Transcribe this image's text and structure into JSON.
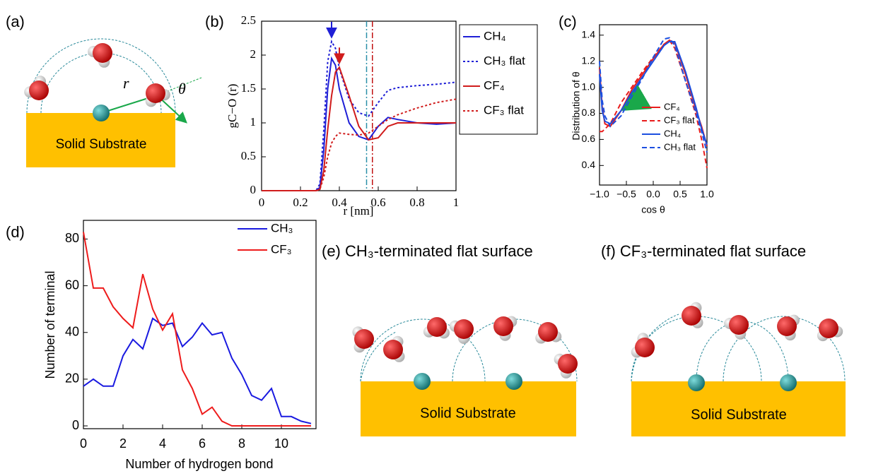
{
  "panels": {
    "a": {
      "label": "(a)",
      "substrate": "Solid Substrate",
      "r": "r",
      "theta": "θ"
    },
    "e": {
      "title": "(e) CH₃-terminated flat surface",
      "substrate": "Solid Substrate"
    },
    "f": {
      "title": "(f) CF₃-terminated flat surface",
      "substrate": "Solid Substrate"
    }
  },
  "chart_data": [
    {
      "type": "line",
      "panel": "(b)",
      "xlabel": "r [nm]",
      "ylabel": "gC−O (r)",
      "x": [
        0,
        0.28,
        0.3,
        0.32,
        0.34,
        0.36,
        0.38,
        0.4,
        0.45,
        0.5,
        0.55,
        0.6,
        0.65,
        0.7,
        0.8,
        0.9,
        1
      ],
      "xlim": [
        0,
        1
      ],
      "xticks": [
        0,
        0.2,
        0.4,
        0.6,
        0.8,
        1
      ],
      "ylim": [
        0,
        2.5
      ],
      "yticks": [
        0,
        0.5,
        1,
        1.5,
        2,
        2.5
      ],
      "series": [
        {
          "name": "CH₄",
          "color": "#1f1fd6",
          "style": "solid",
          "values": [
            0,
            0,
            0.05,
            0.6,
            1.5,
            1.95,
            1.85,
            1.5,
            1.0,
            0.8,
            0.75,
            0.95,
            1.08,
            1.05,
            1.0,
            0.98,
            1.0
          ]
        },
        {
          "name": "CH₃ flat",
          "color": "#1f1fd6",
          "style": "dotted",
          "values": [
            0,
            0,
            0.1,
            0.9,
            1.9,
            2.2,
            2.1,
            1.8,
            1.35,
            1.15,
            1.1,
            1.3,
            1.48,
            1.52,
            1.55,
            1.57,
            1.6
          ]
        },
        {
          "name": "CF₄",
          "color": "#d01c1c",
          "style": "solid",
          "values": [
            0,
            0,
            0.02,
            0.3,
            0.9,
            1.4,
            1.75,
            1.82,
            1.4,
            0.95,
            0.75,
            0.78,
            0.95,
            1.0,
            1.0,
            1.0,
            1.0
          ]
        },
        {
          "name": "CF₃ flat",
          "color": "#d01c1c",
          "style": "dotted",
          "values": [
            0,
            0,
            0.02,
            0.2,
            0.5,
            0.7,
            0.8,
            0.85,
            0.83,
            0.82,
            0.85,
            0.95,
            1.05,
            1.12,
            1.22,
            1.3,
            1.35
          ]
        }
      ],
      "vlines": [
        {
          "value": 0.54,
          "color": "#2a8fa8"
        },
        {
          "value": 0.57,
          "color": "#c01010"
        }
      ]
    },
    {
      "type": "line",
      "panel": "(c)",
      "xlabel": "cos θ",
      "ylabel": "Distribution of θ",
      "x": [
        -1,
        -0.95,
        -0.9,
        -0.8,
        -0.6,
        -0.4,
        -0.2,
        0,
        0.2,
        0.3,
        0.4,
        0.6,
        0.8,
        0.9,
        1
      ],
      "xlim": [
        -1,
        1
      ],
      "xticks": [
        {
          "value": -1,
          "label": "−1.0"
        },
        {
          "value": -0.5,
          "label": "−0.5"
        },
        {
          "value": 0,
          "label": "0.0"
        },
        0.5,
        {
          "value": 1,
          "label": "1.0"
        }
      ],
      "ylim": [
        0.25,
        1.48
      ],
      "yticks": [
        0.4,
        0.6,
        0.8,
        {
          "value": 1,
          "label": "1.0"
        },
        1.2,
        1.4
      ],
      "series": [
        {
          "name": "CF₄",
          "color": "#e81c1c",
          "style": "solid",
          "values": [
            1.15,
            0.85,
            0.72,
            0.7,
            0.82,
            0.98,
            1.1,
            1.22,
            1.33,
            1.36,
            1.34,
            1.1,
            0.82,
            0.7,
            0.55
          ]
        },
        {
          "name": "CF₃ flat",
          "color": "#e81c1c",
          "style": "dashed",
          "values": [
            0.66,
            0.66,
            0.68,
            0.72,
            0.88,
            1.0,
            1.12,
            1.23,
            1.33,
            1.36,
            1.3,
            1.05,
            0.78,
            0.6,
            0.38
          ]
        },
        {
          "name": "CH₄",
          "color": "#1c4fe0",
          "style": "solid",
          "values": [
            1.1,
            0.82,
            0.74,
            0.72,
            0.82,
            0.96,
            1.08,
            1.2,
            1.32,
            1.35,
            1.35,
            1.12,
            0.84,
            0.68,
            0.56
          ]
        },
        {
          "name": "CH₃ flat",
          "color": "#1c4fe0",
          "style": "dashed",
          "values": [
            1.2,
            0.9,
            0.78,
            0.7,
            0.78,
            0.93,
            1.07,
            1.23,
            1.37,
            1.38,
            1.32,
            1.05,
            0.8,
            0.66,
            0.5
          ]
        }
      ]
    },
    {
      "type": "line",
      "panel": "(d)",
      "xlabel": "Number of hydrogen bond",
      "ylabel": "Number of terminal",
      "x": [
        0,
        0.5,
        1,
        1.5,
        2,
        2.5,
        3,
        3.5,
        4,
        4.5,
        5,
        5.5,
        6,
        6.5,
        7,
        7.5,
        8,
        8.5,
        9,
        9.5,
        10,
        10.5,
        11,
        11.5
      ],
      "xlim": [
        0,
        11.75
      ],
      "xticks": [
        0,
        2,
        4,
        6,
        8,
        10
      ],
      "ylim": [
        -1.2,
        88
      ],
      "yticks": [
        0,
        20,
        40,
        60,
        80
      ],
      "series": [
        {
          "name": "CH₃",
          "color": "#1a1ae0",
          "style": "solid",
          "values": [
            17,
            20,
            17,
            17,
            30,
            37,
            33,
            46,
            43,
            44,
            34,
            38,
            44,
            39,
            40,
            29,
            22,
            13,
            11,
            16,
            4,
            4,
            2,
            1
          ]
        },
        {
          "name": "CF₃",
          "color": "#ee1c1c",
          "style": "solid",
          "values": [
            83,
            59,
            59,
            51,
            46,
            42,
            65,
            50,
            41,
            48,
            24,
            16,
            5,
            8,
            2,
            0,
            0,
            0,
            0,
            0,
            0,
            0,
            0,
            0
          ]
        }
      ]
    }
  ]
}
